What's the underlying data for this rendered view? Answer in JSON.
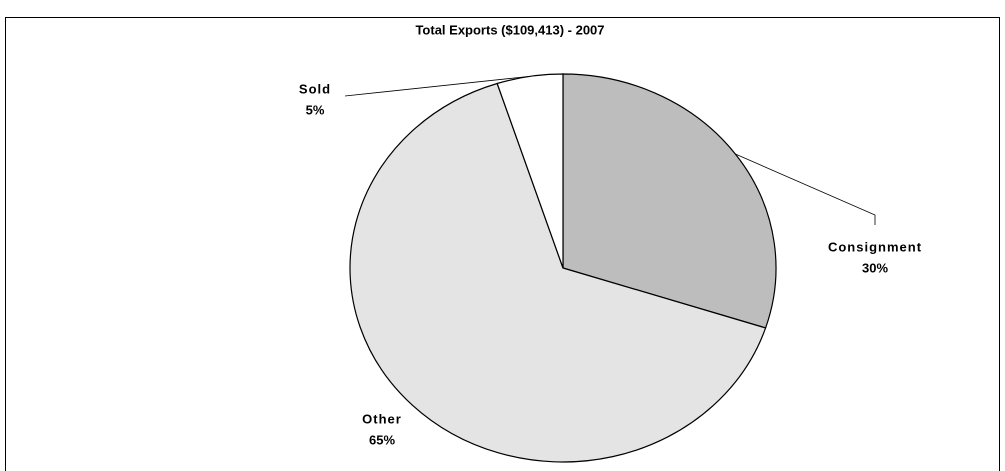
{
  "chart_data": {
    "type": "pie",
    "title": "Total Exports ($109,413) - 2007",
    "categories": [
      "Consignment",
      "Other",
      "Sold"
    ],
    "values": [
      30,
      65,
      5
    ],
    "value_labels": [
      "30%",
      "65%",
      "5%"
    ],
    "colors": [
      "#bdbdbd",
      "#e4e4e4",
      "#ffffff"
    ]
  }
}
